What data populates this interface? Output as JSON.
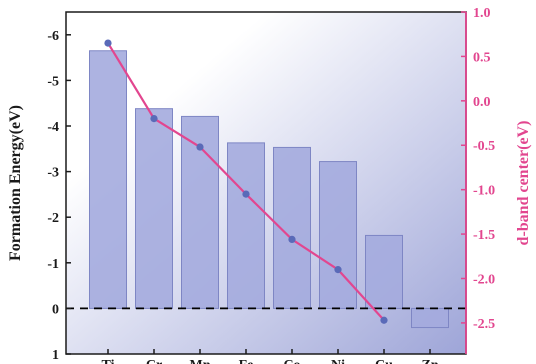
{
  "chart_data": {
    "type": "bar+line",
    "categories": [
      "Ti",
      "Cr",
      "Mn",
      "Fe",
      "Co",
      "Ni",
      "Cu",
      "Zn"
    ],
    "bars": {
      "name": "Formation Energy",
      "values": [
        -5.65,
        -4.38,
        -4.21,
        -3.63,
        -3.53,
        -3.22,
        -1.6,
        0.42
      ],
      "color": "#a4abde"
    },
    "line": {
      "name": "d-band center",
      "x_categories": [
        "Ti",
        "Cr",
        "Mn",
        "Fe",
        "Co",
        "Ni",
        "Cu"
      ],
      "values": [
        0.65,
        -0.2,
        -0.52,
        -1.05,
        -1.56,
        -1.9,
        -2.47
      ],
      "line_color": "#e2468f",
      "marker_color": "#5a6ab8"
    },
    "left_axis": {
      "label": "Formation Energy(eV)",
      "ticks": [
        "1",
        "0",
        "-1",
        "-2",
        "-3",
        "-4",
        "-5",
        "-6"
      ],
      "tick_values": [
        1,
        0,
        -1,
        -2,
        -3,
        -4,
        -5,
        -6
      ],
      "range": [
        1,
        -6.5
      ],
      "inverted": true,
      "color": "#1a1a1a"
    },
    "right_axis": {
      "label": "d-band center(eV)",
      "ticks": [
        "1.0",
        "0.5",
        "0.0",
        "-0.5",
        "-1.0",
        "-1.5",
        "-2.0",
        "-2.5"
      ],
      "tick_values": [
        1.0,
        0.5,
        0.0,
        -0.5,
        -1.0,
        -1.5,
        -2.0,
        -2.5
      ],
      "range": [
        -2.85,
        1.0
      ],
      "color": "#e2468f"
    },
    "reference_line": {
      "value": 0,
      "style": "dashed",
      "color": "#000000"
    },
    "background_gradient": [
      "#ffffff",
      "#9ea5d8"
    ],
    "grid": false
  }
}
